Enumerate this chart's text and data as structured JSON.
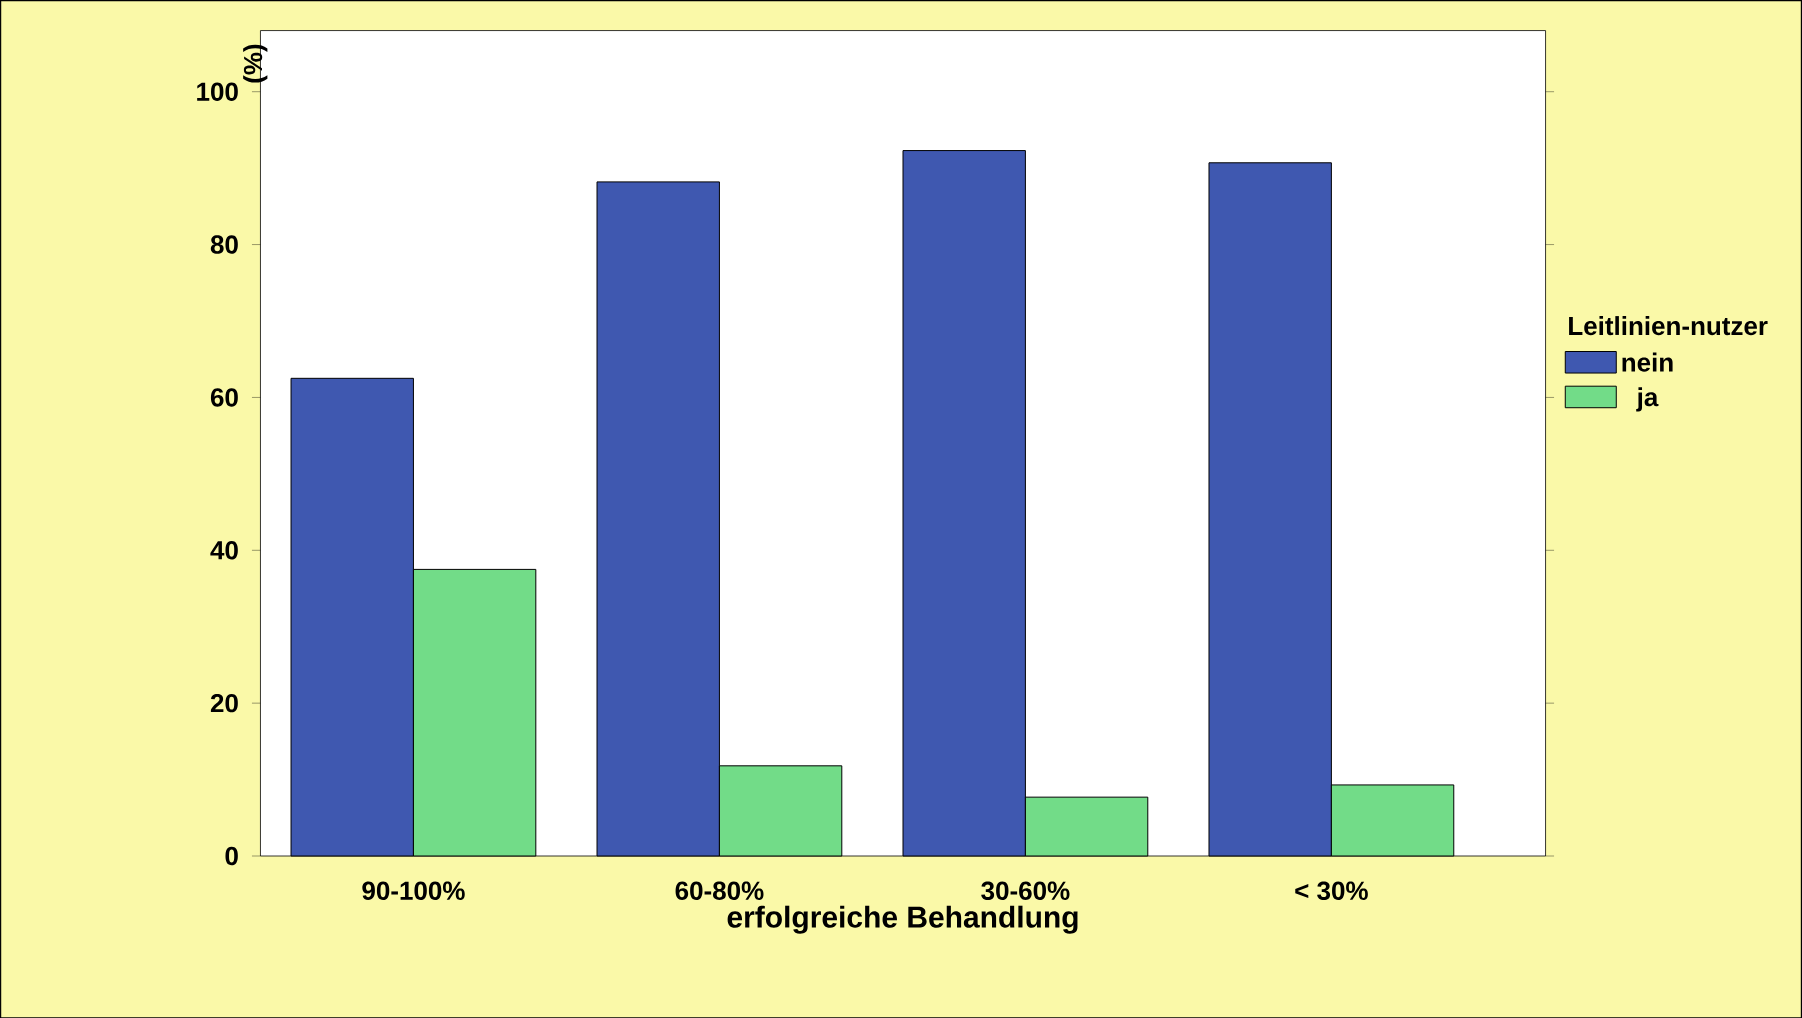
{
  "chart_data": {
    "type": "bar",
    "xlabel": "erfolgreiche Behandlung",
    "ylabel": "(%)",
    "legend_title": "Leitlinien-nutzer",
    "categories": [
      "90-100%",
      "60-80%",
      "30-60%",
      "< 30%"
    ],
    "series": [
      {
        "name": "nein",
        "color": "#3f58b0",
        "values": [
          62.5,
          88.2,
          92.3,
          90.7
        ]
      },
      {
        "name": "ja",
        "color": "#72dc88",
        "values": [
          37.5,
          11.8,
          7.7,
          9.3
        ]
      }
    ],
    "ylim": [
      0,
      108
    ],
    "yticks": [
      0,
      20,
      40,
      60,
      80,
      100
    ],
    "grid": false,
    "legend": "right"
  }
}
